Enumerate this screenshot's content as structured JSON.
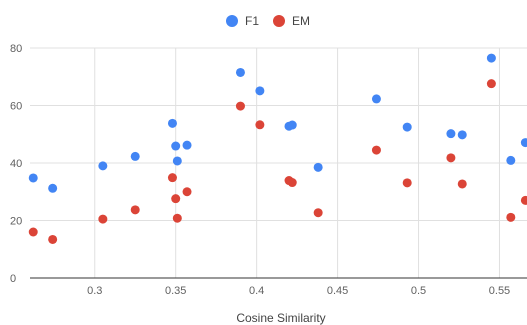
{
  "chart_data": {
    "type": "scatter",
    "title": "",
    "xlabel": "Cosine Similarity",
    "ylabel": "",
    "xlim": [
      0.26,
      0.567
    ],
    "ylim": [
      0,
      80
    ],
    "x_ticks": [
      "0.3",
      "0.35",
      "0.4",
      "0.45",
      "0.5",
      "0.55"
    ],
    "y_ticks": [
      "0",
      "20",
      "40",
      "60",
      "80"
    ],
    "grid": true,
    "legend_position": "top-center",
    "series": [
      {
        "name": "F1",
        "color": "#4285f4",
        "points": [
          [
            0.262,
            34.8
          ],
          [
            0.274,
            31.2
          ],
          [
            0.305,
            39.0
          ],
          [
            0.325,
            42.3
          ],
          [
            0.348,
            53.8
          ],
          [
            0.35,
            45.9
          ],
          [
            0.351,
            40.7
          ],
          [
            0.357,
            46.2
          ],
          [
            0.39,
            71.5
          ],
          [
            0.402,
            65.1
          ],
          [
            0.42,
            52.8
          ],
          [
            0.422,
            53.2
          ],
          [
            0.438,
            38.5
          ],
          [
            0.474,
            62.3
          ],
          [
            0.493,
            52.5
          ],
          [
            0.52,
            50.2
          ],
          [
            0.527,
            49.8
          ],
          [
            0.545,
            76.5
          ],
          [
            0.557,
            40.9
          ],
          [
            0.566,
            47.1
          ]
        ]
      },
      {
        "name": "EM",
        "color": "#db4437",
        "points": [
          [
            0.262,
            16.0
          ],
          [
            0.274,
            13.4
          ],
          [
            0.305,
            20.5
          ],
          [
            0.325,
            23.7
          ],
          [
            0.348,
            34.9
          ],
          [
            0.35,
            27.6
          ],
          [
            0.351,
            20.8
          ],
          [
            0.357,
            30.0
          ],
          [
            0.39,
            59.8
          ],
          [
            0.402,
            53.3
          ],
          [
            0.42,
            33.9
          ],
          [
            0.422,
            33.2
          ],
          [
            0.438,
            22.7
          ],
          [
            0.474,
            44.5
          ],
          [
            0.493,
            33.1
          ],
          [
            0.52,
            41.8
          ],
          [
            0.527,
            32.7
          ],
          [
            0.545,
            67.6
          ],
          [
            0.557,
            21.1
          ],
          [
            0.566,
            27.0
          ]
        ]
      }
    ]
  }
}
